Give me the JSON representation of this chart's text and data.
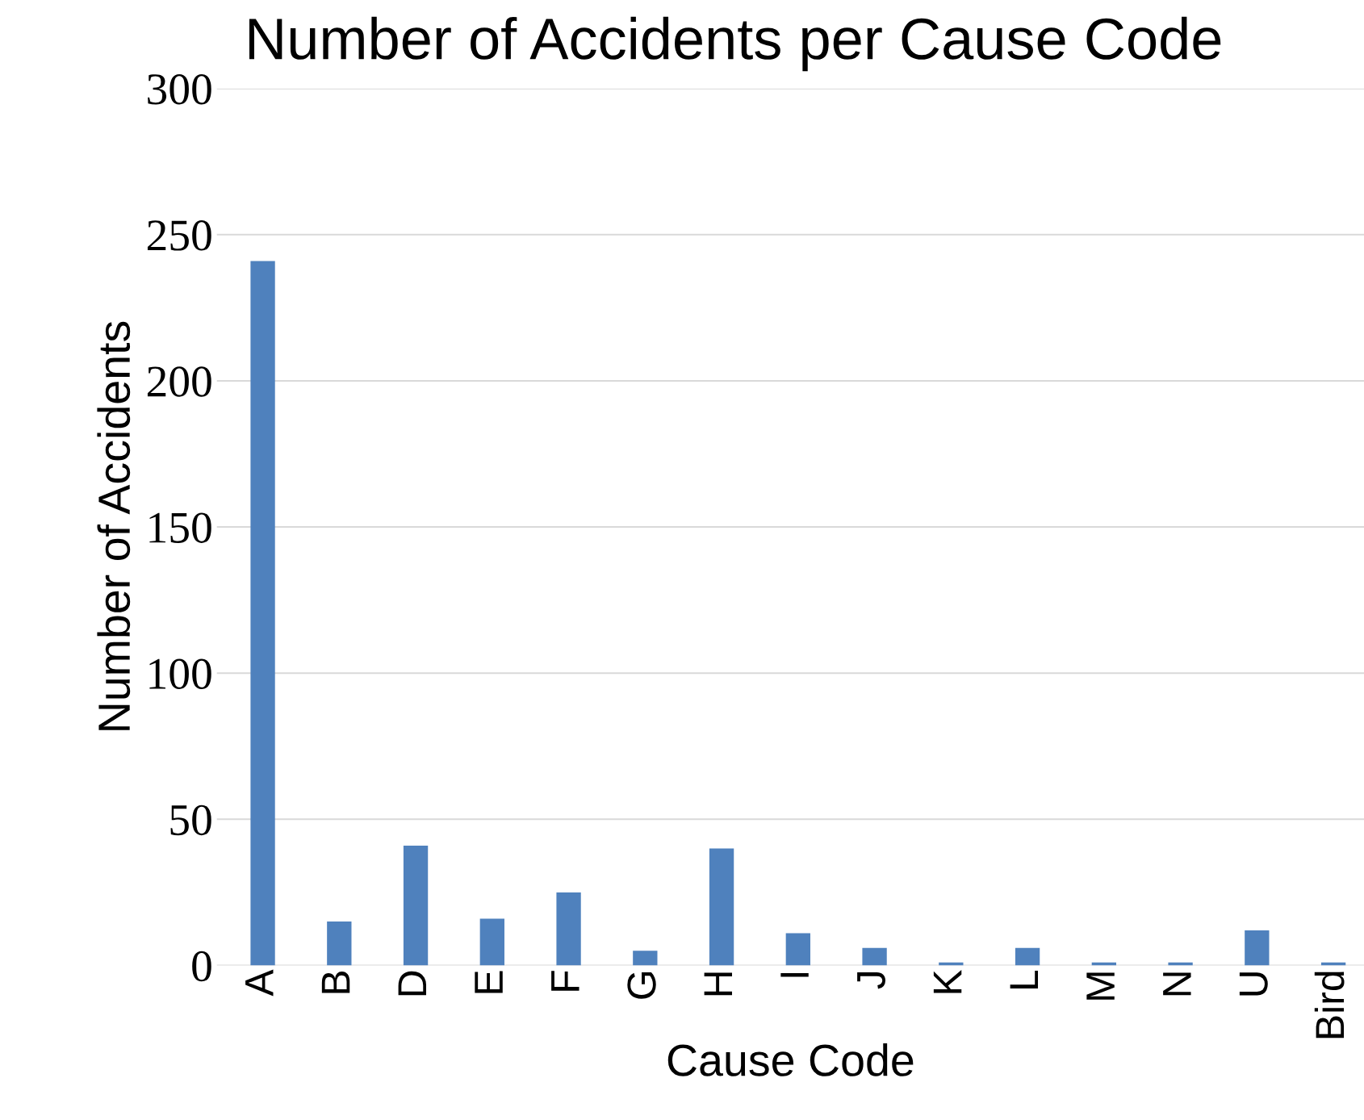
{
  "chart_data": {
    "type": "bar",
    "title": "Number of Accidents per Cause Code",
    "xlabel": "Cause Code",
    "ylabel": "Number of Accidents",
    "categories": [
      "A",
      "B",
      "D",
      "E",
      "F",
      "G",
      "H",
      "I",
      "J",
      "K",
      "L",
      "M",
      "N",
      "U",
      "Bird"
    ],
    "values": [
      241,
      15,
      41,
      16,
      25,
      5,
      40,
      11,
      6,
      1,
      6,
      1,
      1,
      12,
      1
    ],
    "color": "#4f81bd",
    "ylim": [
      0,
      300
    ],
    "yticks": [
      0,
      50,
      100,
      150,
      200,
      250,
      300
    ],
    "grid": "y",
    "legend": false
  }
}
